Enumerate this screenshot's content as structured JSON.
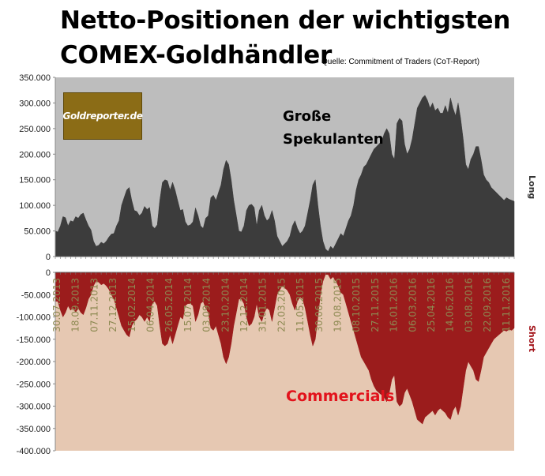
{
  "header": {
    "title_line1": "Netto-Positionen der wichtigsten",
    "title_line2": "COMEX-Goldhändler",
    "source": "Quelle: Commitment of Traders (CoT-Report)"
  },
  "logo": {
    "text": "Goldreporter.de"
  },
  "annotations": {
    "long_label_line1": "Große",
    "long_label_line2": "Spekulanten",
    "short_label": "Commercials",
    "side_long": "Long",
    "side_short": "Short"
  },
  "colors": {
    "long_fill": "#3c3c3c",
    "long_bg": "#bdbdbd",
    "short_fill": "#9b1c1c",
    "short_bg": "#e6c8b2",
    "short_text": "#e2131c",
    "date_labels": "#8d8a52"
  },
  "chart_data": [
    {
      "type": "area",
      "title": "Netto-Positionen der wichtigsten COMEX-Goldhändler",
      "series_label": "Große Spekulanten",
      "ylim": [
        0,
        350000
      ],
      "yticks": [
        "350.000",
        "300.000",
        "250.000",
        "200.000",
        "150.000",
        "100.000",
        "50.000",
        "0"
      ],
      "x": [
        0,
        1,
        2,
        3,
        4,
        5,
        6,
        7,
        8,
        9,
        10,
        11,
        12,
        13,
        14,
        15,
        16,
        17,
        18,
        19,
        20,
        21,
        22,
        23,
        24,
        25,
        26,
        27,
        28,
        29,
        30,
        31,
        32,
        33,
        34,
        35,
        36,
        37,
        38,
        39,
        40,
        41,
        42,
        43,
        44,
        45,
        46,
        47,
        48,
        49,
        50,
        51,
        52,
        53,
        54,
        55,
        56,
        57,
        58,
        59,
        60,
        61,
        62,
        63,
        64,
        65,
        66,
        67,
        68,
        69,
        70,
        71,
        72,
        73,
        74,
        75,
        76,
        77,
        78,
        79,
        80,
        81,
        82,
        83,
        84,
        85,
        86,
        87,
        88,
        89,
        90,
        91,
        92,
        93,
        94,
        95,
        96,
        97,
        98,
        99,
        100,
        101,
        102,
        103,
        104,
        105,
        106,
        107,
        108,
        109,
        110,
        111,
        112,
        113,
        114,
        115,
        116,
        117,
        118,
        119,
        120,
        121,
        122,
        123,
        124,
        125,
        126,
        127,
        128,
        129,
        130,
        131,
        132,
        133,
        134,
        135,
        136,
        137,
        138,
        139,
        140,
        141,
        142,
        143,
        144,
        145,
        146,
        147,
        148,
        149,
        150,
        151,
        152,
        153,
        154,
        155,
        156,
        157,
        158,
        159,
        160,
        161,
        162,
        163,
        164,
        165,
        166,
        167,
        168,
        169,
        170,
        171,
        172,
        173,
        174,
        175,
        176,
        177,
        178,
        179,
        180
      ],
      "values": [
        50000,
        48000,
        60000,
        78000,
        76000,
        60000,
        70000,
        68000,
        78000,
        75000,
        82000,
        85000,
        72000,
        60000,
        52000,
        30000,
        20000,
        22000,
        28000,
        25000,
        30000,
        38000,
        44000,
        45000,
        60000,
        70000,
        100000,
        115000,
        130000,
        135000,
        110000,
        90000,
        88000,
        80000,
        85000,
        98000,
        92000,
        96000,
        60000,
        55000,
        62000,
        110000,
        145000,
        150000,
        148000,
        130000,
        145000,
        130000,
        110000,
        90000,
        92000,
        68000,
        60000,
        62000,
        68000,
        95000,
        80000,
        60000,
        55000,
        75000,
        80000,
        115000,
        120000,
        110000,
        125000,
        140000,
        170000,
        188000,
        180000,
        150000,
        110000,
        80000,
        50000,
        48000,
        60000,
        90000,
        100000,
        102000,
        96000,
        60000,
        90000,
        100000,
        80000,
        70000,
        75000,
        90000,
        70000,
        40000,
        30000,
        20000,
        25000,
        30000,
        40000,
        60000,
        70000,
        55000,
        45000,
        50000,
        60000,
        85000,
        110000,
        140000,
        150000,
        100000,
        60000,
        30000,
        15000,
        10000,
        20000,
        15000,
        25000,
        35000,
        45000,
        40000,
        55000,
        70000,
        80000,
        100000,
        130000,
        150000,
        160000,
        175000,
        180000,
        190000,
        200000,
        210000,
        215000,
        220000,
        225000,
        240000,
        250000,
        240000,
        200000,
        190000,
        260000,
        270000,
        265000,
        220000,
        200000,
        210000,
        230000,
        260000,
        290000,
        300000,
        310000,
        315000,
        305000,
        290000,
        300000,
        285000,
        290000,
        280000,
        280000,
        295000,
        280000,
        310000,
        290000,
        275000,
        300000,
        270000,
        230000,
        180000,
        170000,
        190000,
        200000,
        215000,
        215000,
        190000,
        160000,
        150000,
        145000,
        135000,
        130000,
        125000,
        120000,
        115000,
        110000,
        115000,
        112000,
        110000,
        108000
      ],
      "annotations": [
        "Große",
        "Spekulanten"
      ]
    },
    {
      "type": "area",
      "series_label": "Commercials",
      "ylim": [
        -400000,
        0
      ],
      "yticks": [
        "0",
        "-50.000",
        "-100.000",
        "-150.000",
        "-200.000",
        "-250.000",
        "-300.000",
        "-350.000",
        "-400.000"
      ],
      "categories": [
        "30.07.2013",
        "18.09.2013",
        "07.11.2013",
        "27.12.2013",
        "15.02.2014",
        "06.04.2014",
        "26.05.2014",
        "15.07.2014",
        "03.09.2014",
        "23.10.2014",
        "12.12.2014",
        "31.01.2015",
        "22.03.2015",
        "11.05.2015",
        "30.06.2015",
        "19.08.2015",
        "08.10.2015",
        "27.11.2015",
        "16.01.2016",
        "06.03.2016",
        "25.04.2016",
        "14.06.2016",
        "03.08.2016",
        "22.09.2016",
        "11.11.2016"
      ],
      "x": [
        0,
        1,
        2,
        3,
        4,
        5,
        6,
        7,
        8,
        9,
        10,
        11,
        12,
        13,
        14,
        15,
        16,
        17,
        18,
        19,
        20,
        21,
        22,
        23,
        24,
        25,
        26,
        27,
        28,
        29,
        30,
        31,
        32,
        33,
        34,
        35,
        36,
        37,
        38,
        39,
        40,
        41,
        42,
        43,
        44,
        45,
        46,
        47,
        48,
        49,
        50,
        51,
        52,
        53,
        54,
        55,
        56,
        57,
        58,
        59,
        60,
        61,
        62,
        63,
        64,
        65,
        66,
        67,
        68,
        69,
        70,
        71,
        72,
        73,
        74,
        75,
        76,
        77,
        78,
        79,
        80,
        81,
        82,
        83,
        84,
        85,
        86,
        87,
        88,
        89,
        90,
        91,
        92,
        93,
        94,
        95,
        96,
        97,
        98,
        99,
        100,
        101,
        102,
        103,
        104,
        105,
        106,
        107,
        108,
        109,
        110,
        111,
        112,
        113,
        114,
        115,
        116,
        117,
        118,
        119,
        120,
        121,
        122,
        123,
        124,
        125,
        126,
        127,
        128,
        129,
        130,
        131,
        132,
        133,
        134,
        135,
        136,
        137,
        138,
        139,
        140,
        141,
        142,
        143,
        144,
        145,
        146,
        147,
        148,
        149,
        150,
        151,
        152,
        153,
        154,
        155,
        156,
        157,
        158,
        159,
        160,
        161,
        162,
        163,
        164,
        165,
        166,
        167,
        168,
        169,
        170,
        171,
        172,
        173,
        174,
        175,
        176,
        177,
        178,
        179,
        180
      ],
      "values": [
        -65000,
        -65000,
        -85000,
        -100000,
        -90000,
        -75000,
        -85000,
        -80000,
        -90000,
        -80000,
        -90000,
        -95000,
        -80000,
        -60000,
        -50000,
        -30000,
        -20000,
        -22000,
        -28000,
        -25000,
        -30000,
        -38000,
        -50000,
        -60000,
        -80000,
        -100000,
        -120000,
        -130000,
        -140000,
        -145000,
        -120000,
        -110000,
        -105000,
        -95000,
        -100000,
        -110000,
        -100000,
        -110000,
        -70000,
        -65000,
        -75000,
        -120000,
        -160000,
        -165000,
        -160000,
        -140000,
        -160000,
        -140000,
        -120000,
        -100000,
        -105000,
        -75000,
        -70000,
        -70000,
        -75000,
        -110000,
        -95000,
        -70000,
        -65000,
        -80000,
        -90000,
        -125000,
        -130000,
        -120000,
        -140000,
        -160000,
        -190000,
        -205000,
        -190000,
        -160000,
        -120000,
        -90000,
        -60000,
        -60000,
        -70000,
        -100000,
        -120000,
        -115000,
        -100000,
        -70000,
        -100000,
        -110000,
        -90000,
        -80000,
        -85000,
        -110000,
        -80000,
        -50000,
        -40000,
        -30000,
        -35000,
        -40000,
        -50000,
        -70000,
        -85000,
        -65000,
        -55000,
        -60000,
        -80000,
        -110000,
        -140000,
        -165000,
        -150000,
        -100000,
        -50000,
        -20000,
        -5000,
        -5000,
        -15000,
        -10000,
        -20000,
        -30000,
        -45000,
        -50000,
        -70000,
        -90000,
        -110000,
        -130000,
        -150000,
        -170000,
        -190000,
        -200000,
        -210000,
        -220000,
        -240000,
        -255000,
        -265000,
        -270000,
        -275000,
        -280000,
        -290000,
        -270000,
        -240000,
        -230000,
        -290000,
        -300000,
        -295000,
        -270000,
        -260000,
        -275000,
        -290000,
        -310000,
        -330000,
        -335000,
        -340000,
        -325000,
        -320000,
        -315000,
        -310000,
        -320000,
        -310000,
        -305000,
        -310000,
        -315000,
        -325000,
        -330000,
        -310000,
        -300000,
        -320000,
        -300000,
        -260000,
        -220000,
        -200000,
        -210000,
        -220000,
        -240000,
        -245000,
        -220000,
        -190000,
        -180000,
        -170000,
        -160000,
        -150000,
        -145000,
        -140000,
        -135000,
        -130000,
        -132000,
        -128000,
        -130000,
        -125000
      ],
      "annotations": [
        "Commercials"
      ]
    }
  ]
}
